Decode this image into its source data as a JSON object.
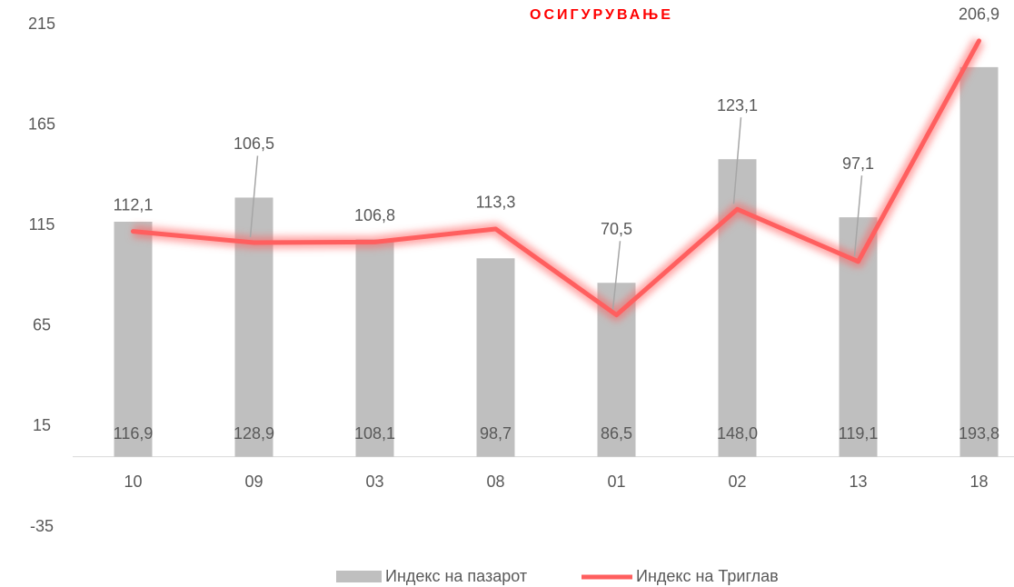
{
  "chart_data": {
    "type": "bar_line",
    "title": "ОСИГУРУВАЊЕ",
    "categories": [
      "10",
      "09",
      "03",
      "08",
      "01",
      "02",
      "13",
      "18"
    ],
    "series": [
      {
        "name": "Индекс на пазарот",
        "type": "bar",
        "color": "#bfbfbf",
        "values": [
          116.9,
          128.9,
          108.1,
          98.7,
          86.5,
          148.0,
          119.1,
          193.8
        ],
        "value_labels": [
          "116,9",
          "128,9",
          "108,1",
          "98,7",
          "86,5",
          "148,0",
          "119,1",
          "193,8"
        ]
      },
      {
        "name": "Индекс на Триглав",
        "type": "line",
        "color": "#ff5f5f",
        "values": [
          112.1,
          106.5,
          106.8,
          113.3,
          70.5,
          123.1,
          97.1,
          206.9
        ],
        "value_labels": [
          "112,1",
          "106,5",
          "106,8",
          "113,3",
          "70,5",
          "123,1",
          "97,1",
          "206,9"
        ]
      }
    ],
    "ylim": [
      -35,
      215
    ],
    "yticks": [
      -35,
      15,
      65,
      115,
      165,
      215
    ],
    "legend": "bottom"
  }
}
